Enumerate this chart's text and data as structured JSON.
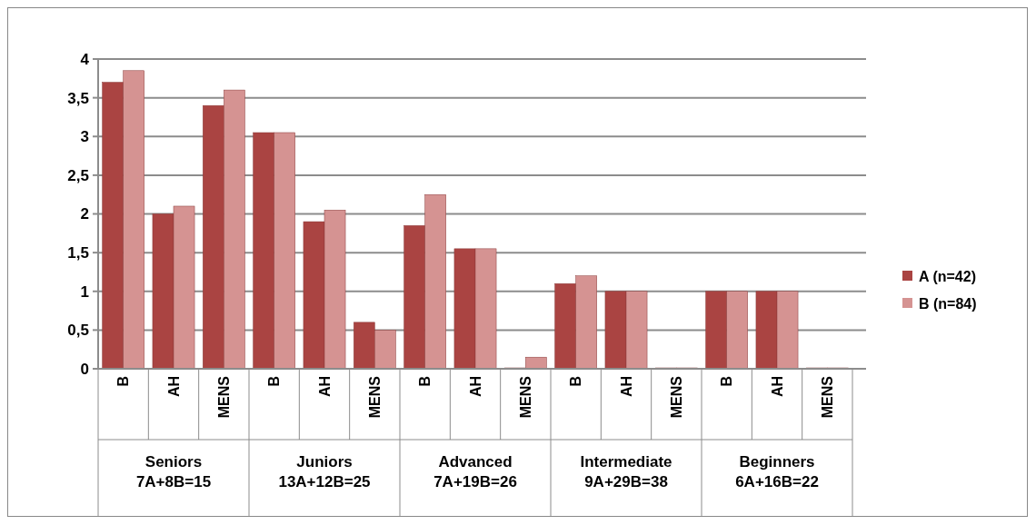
{
  "chart_data": {
    "type": "bar",
    "categories": [
      "B",
      "AH",
      "MENS",
      "B",
      "AH",
      "MENS",
      "B",
      "AH",
      "MENS",
      "B",
      "AH",
      "MENS",
      "B",
      "AH",
      "MENS"
    ],
    "series": [
      {
        "name": "A (n=42)",
        "color": "#aa4442",
        "values": [
          3.7,
          2.0,
          3.4,
          3.05,
          1.9,
          0.6,
          1.85,
          1.55,
          0,
          1.1,
          1.0,
          0,
          1.0,
          1.0,
          0
        ]
      },
      {
        "name": "B (n=84)",
        "color": "#d59392",
        "values": [
          3.85,
          2.1,
          3.6,
          3.05,
          2.05,
          0.5,
          2.25,
          1.55,
          0.15,
          1.2,
          1.0,
          0,
          1.0,
          1.0,
          0
        ]
      }
    ],
    "annotations": [
      "Seniors\n7A+8B=15",
      "Juniors\n13A+12B=25",
      "Advanced\n7A+19B=26",
      "Intermediate\n9A+29B=38",
      "Beginners\n6A+16B=22"
    ],
    "ylim": [
      0,
      4
    ],
    "yticks": [
      0,
      "0,5",
      1,
      "1,5",
      2,
      "2,5",
      3,
      "3,5",
      4
    ],
    "grid": "y",
    "legend": "right"
  }
}
